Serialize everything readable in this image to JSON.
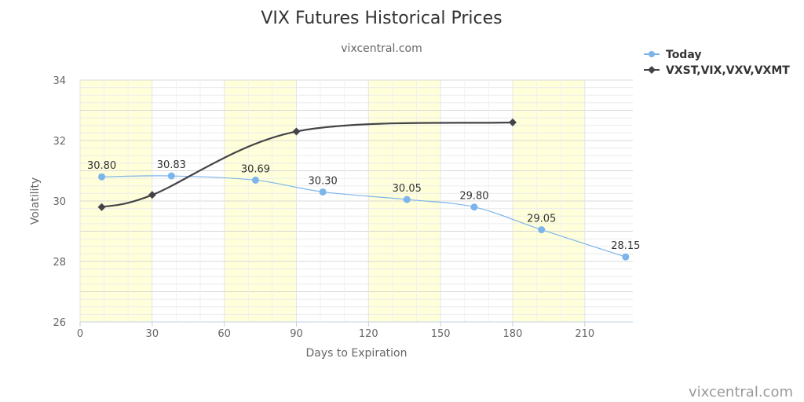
{
  "chart_data": {
    "type": "line",
    "title": "VIX Futures Historical Prices",
    "subtitle": "vixcentral.com",
    "xlabel": "Days to Expiration",
    "ylabel": "Volatility",
    "xlim": [
      0,
      230
    ],
    "ylim": [
      26,
      34
    ],
    "x_ticks": [
      0,
      30,
      60,
      90,
      120,
      150,
      180,
      210
    ],
    "y_ticks": [
      26,
      28,
      30,
      32,
      34
    ],
    "shaded_bands": [
      [
        0,
        30
      ],
      [
        60,
        90
      ],
      [
        120,
        150
      ],
      [
        180,
        210
      ]
    ],
    "band_color": "#ffffd9",
    "grid": true,
    "legend_position": "top-right",
    "series": [
      {
        "name": "Today",
        "color": "#7cb5ec",
        "marker": "circle",
        "x": [
          9,
          38,
          73,
          101,
          136,
          164,
          192,
          227
        ],
        "y": [
          30.8,
          30.83,
          30.69,
          30.3,
          30.05,
          29.8,
          29.05,
          28.15
        ],
        "labels": [
          "30.80",
          "30.83",
          "30.69",
          "30.30",
          "30.05",
          "29.80",
          "29.05",
          "28.15"
        ]
      },
      {
        "name": "VXST,VIX,VXV,VXMT",
        "color": "#434348",
        "marker": "diamond",
        "x": [
          9,
          30,
          90,
          180
        ],
        "y": [
          29.8,
          30.2,
          32.3,
          32.6
        ]
      }
    ]
  },
  "credit": "vixcentral.com"
}
